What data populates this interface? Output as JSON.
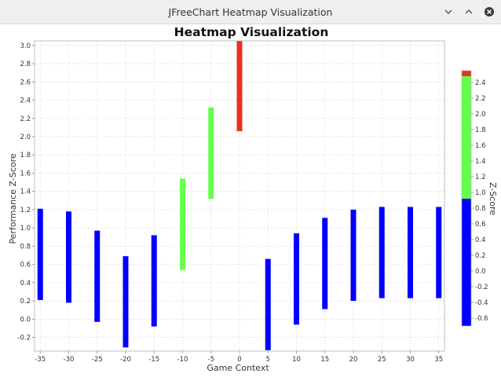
{
  "window": {
    "title": "JFreeChart Heatmap Visualization",
    "controls": [
      "minimize-icon",
      "maximize-icon",
      "close-icon"
    ]
  },
  "chart_data": {
    "type": "heatmap",
    "title": "Heatmap Visualization",
    "xlabel": "Game Context",
    "ylabel": "Performance Z-Score",
    "xlim": [
      -36,
      36
    ],
    "ylim": [
      -0.35,
      3.05
    ],
    "x_ticks": [
      -35,
      -30,
      -25,
      -20,
      -15,
      -10,
      -5,
      0,
      5,
      10,
      15,
      20,
      25,
      30,
      35
    ],
    "y_ticks": [
      -0.2,
      0.0,
      0.2,
      0.4,
      0.6,
      0.8,
      1.0,
      1.2,
      1.4,
      1.6,
      1.8,
      2.0,
      2.2,
      2.4,
      2.6,
      2.8,
      3.0
    ],
    "y_tick_labels": [
      "-0.2",
      "0.0",
      "0.2",
      "0.4",
      "0.6",
      "0.8",
      "1.0",
      "1.2",
      "1.4",
      "1.6",
      "1.8",
      "2.0",
      "2.2",
      "2.4",
      "2.6",
      "2.8",
      "3.0"
    ],
    "grid": true,
    "bars": [
      {
        "x": -35,
        "low": 0.21,
        "high": 1.21,
        "z": -0.6,
        "color": "#0000ff"
      },
      {
        "x": -30,
        "low": 0.18,
        "high": 1.18,
        "z": -0.6,
        "color": "#0000ff"
      },
      {
        "x": -25,
        "low": -0.03,
        "high": 0.97,
        "z": -0.6,
        "color": "#0000ff"
      },
      {
        "x": -20,
        "low": -0.31,
        "high": 0.69,
        "z": -0.6,
        "color": "#0000ff"
      },
      {
        "x": -15,
        "low": -0.08,
        "high": 0.92,
        "z": -0.6,
        "color": "#0000ff"
      },
      {
        "x": -10,
        "low": 0.54,
        "high": 1.54,
        "z": 1.6,
        "color": "#66ff4d"
      },
      {
        "x": -5,
        "low": 1.32,
        "high": 2.32,
        "z": 1.6,
        "color": "#66ff4d"
      },
      {
        "x": 0,
        "low": 2.06,
        "high": 3.06,
        "z": 2.6,
        "color": "#e8321e"
      },
      {
        "x": 5,
        "low": -0.34,
        "high": 0.66,
        "z": -0.6,
        "color": "#0000ff"
      },
      {
        "x": 10,
        "low": -0.06,
        "high": 0.94,
        "z": -0.6,
        "color": "#0000ff"
      },
      {
        "x": 15,
        "low": 0.11,
        "high": 1.11,
        "z": -0.6,
        "color": "#0000ff"
      },
      {
        "x": 20,
        "low": 0.2,
        "high": 1.2,
        "z": -0.6,
        "color": "#0000ff"
      },
      {
        "x": 25,
        "low": 0.23,
        "high": 1.23,
        "z": -0.6,
        "color": "#0000ff"
      },
      {
        "x": 30,
        "low": 0.23,
        "high": 1.23,
        "z": -0.6,
        "color": "#0000ff"
      },
      {
        "x": 35,
        "low": 0.23,
        "high": 1.23,
        "z": -0.6,
        "color": "#0000ff"
      }
    ],
    "legend": {
      "title": "Z-Score",
      "placement": "right",
      "range": [
        -0.7,
        2.55
      ],
      "ticks": [
        -0.6,
        -0.4,
        -0.2,
        0.0,
        0.2,
        0.4,
        0.6,
        0.8,
        1.0,
        1.2,
        1.4,
        1.6,
        1.8,
        2.0,
        2.2,
        2.4
      ],
      "tick_labels": [
        "-0.6",
        "-0.4",
        "-0.2",
        "0.0",
        "0.2",
        "0.4",
        "0.6",
        "0.8",
        "1.0",
        "1.2",
        "1.4",
        "1.6",
        "1.8",
        "2.0",
        "2.2",
        "2.4"
      ],
      "bands": [
        {
          "from": -0.7,
          "to": 0.92,
          "color": "#0000ff"
        },
        {
          "from": 0.92,
          "to": 2.48,
          "color": "#66ff4d"
        },
        {
          "from": 2.48,
          "to": 2.55,
          "color": "#e8321e"
        }
      ]
    }
  }
}
